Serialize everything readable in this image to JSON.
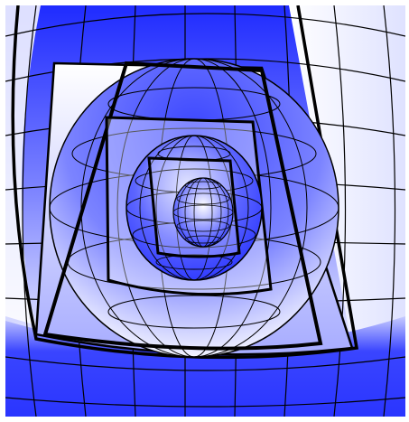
{
  "scene": {
    "subject": "nested-cutaway-spheres",
    "sphere_count": 4,
    "colors": {
      "background": "#ffffff",
      "shade_light": "#ffffff",
      "shade_dark": "#2b36ff",
      "grid_line": "#000000"
    }
  }
}
